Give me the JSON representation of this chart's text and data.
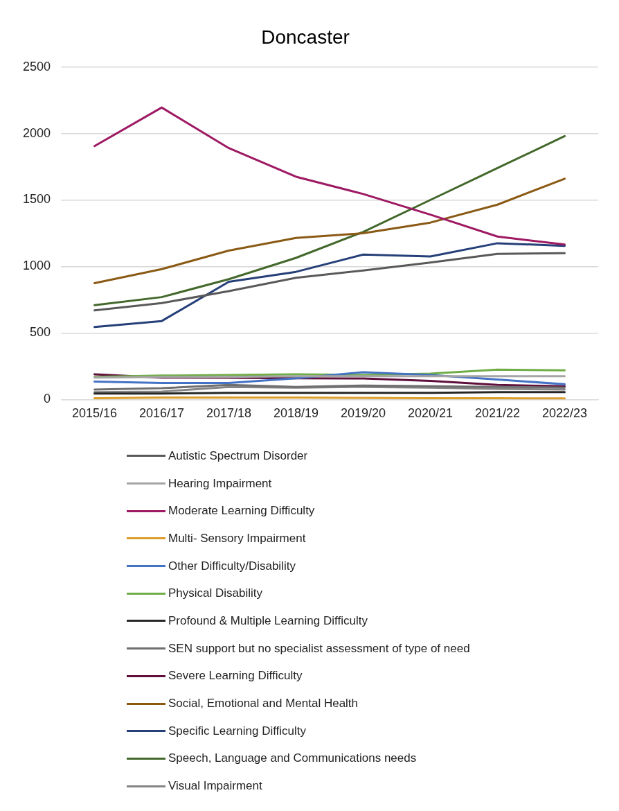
{
  "chart_data": {
    "type": "line",
    "title": "Doncaster",
    "categories": [
      "2015/16",
      "2016/17",
      "2017/18",
      "2018/19",
      "2019/20",
      "2020/21",
      "2021/22",
      "2022/23"
    ],
    "ylim": [
      0,
      2500
    ],
    "yticks": [
      0,
      500,
      1000,
      1500,
      2000,
      2500
    ],
    "grid": "y",
    "legend": "bottom",
    "marker": "none",
    "line_style": "solid",
    "series": [
      {
        "name": "Autistic Spectrum Disorder",
        "color": "#595959",
        "values": [
          670,
          725,
          815,
          915,
          970,
          1030,
          1095,
          1100
        ]
      },
      {
        "name": "Hearing Impairment",
        "color": "#a5a5a5",
        "values": [
          165,
          170,
          170,
          175,
          175,
          175,
          175,
          175
        ]
      },
      {
        "name": "Moderate Learning Difficulty",
        "color": "#9e1a63",
        "values": [
          1905,
          2195,
          1890,
          1675,
          1545,
          1390,
          1225,
          1165
        ]
      },
      {
        "name": "Multi- Sensory Impairment",
        "color": "#dc9d2a",
        "values": [
          10,
          15,
          15,
          15,
          12,
          10,
          10,
          8
        ]
      },
      {
        "name": "Other Difficulty/Disability",
        "color": "#4472c4",
        "values": [
          135,
          125,
          125,
          160,
          205,
          185,
          150,
          115
        ]
      },
      {
        "name": "Physical Disability",
        "color": "#70ad47",
        "values": [
          170,
          180,
          185,
          190,
          185,
          195,
          225,
          220
        ]
      },
      {
        "name": "Profound & Multiple Learning Difficulty",
        "color": "#262626",
        "values": [
          45,
          45,
          50,
          50,
          50,
          50,
          55,
          55
        ]
      },
      {
        "name": "SEN support but no specialist assessment of type of need",
        "color": "#6f6f6f",
        "values": [
          75,
          85,
          110,
          95,
          105,
          100,
          95,
          90
        ]
      },
      {
        "name": "Severe Learning Difficulty",
        "color": "#5e0f3b",
        "values": [
          190,
          165,
          163,
          160,
          158,
          140,
          110,
          100
        ]
      },
      {
        "name": "Social, Emotional and Mental Health",
        "color": "#8a5a15",
        "values": [
          875,
          980,
          1120,
          1215,
          1250,
          1330,
          1465,
          1660
        ]
      },
      {
        "name": "Specific Learning Difficulty",
        "color": "#253f78",
        "values": [
          545,
          590,
          885,
          960,
          1090,
          1075,
          1175,
          1155
        ]
      },
      {
        "name": "Speech, Language and Communications needs",
        "color": "#43682b",
        "values": [
          710,
          770,
          905,
          1065,
          1260,
          1500,
          1740,
          1980
        ]
      },
      {
        "name": "Visual Impairment",
        "color": "#858585",
        "values": [
          55,
          60,
          95,
          90,
          95,
          90,
          80,
          75
        ]
      }
    ]
  }
}
